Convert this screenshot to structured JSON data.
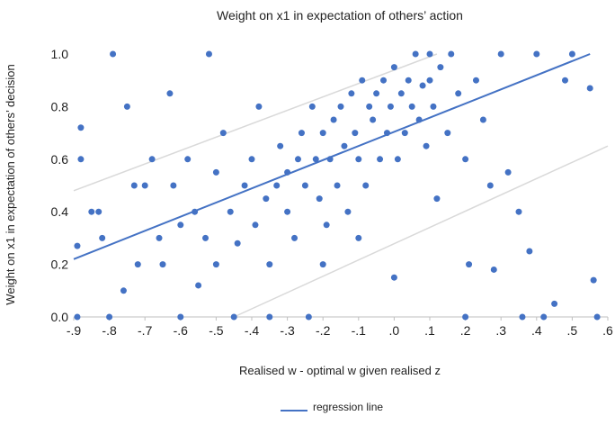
{
  "chart_data": {
    "type": "scatter",
    "title": "Weight on x1 in expectation of others’ action",
    "x_label": "Realised w - optimal w given realised z",
    "y_label": "Weight on x1 in expectation of others’ decision",
    "xlim": [
      -0.9,
      0.6
    ],
    "ylim": [
      0,
      1
    ],
    "xticks": [
      {
        "value": -0.9,
        "label": "-.9"
      },
      {
        "value": -0.8,
        "label": "-.8"
      },
      {
        "value": -0.7,
        "label": "-.7"
      },
      {
        "value": -0.6,
        "label": "-.6"
      },
      {
        "value": -0.5,
        "label": "-.5"
      },
      {
        "value": -0.4,
        "label": "-.4"
      },
      {
        "value": -0.3,
        "label": "-.3"
      },
      {
        "value": -0.2,
        "label": "-.2"
      },
      {
        "value": -0.1,
        "label": "-.1"
      },
      {
        "value": 0,
        "label": ".0"
      },
      {
        "value": 0.1,
        "label": ".1"
      },
      {
        "value": 0.2,
        "label": ".2"
      },
      {
        "value": 0.3,
        "label": ".3"
      },
      {
        "value": 0.4,
        "label": ".4"
      },
      {
        "value": 0.5,
        "label": ".5"
      },
      {
        "value": 0.6,
        "label": ".6"
      }
    ],
    "yticks": [
      {
        "value": 0,
        "label": "0.0"
      },
      {
        "value": 0.2,
        "label": "0.2"
      },
      {
        "value": 0.4,
        "label": "0.4"
      },
      {
        "value": 0.6,
        "label": "0.6"
      },
      {
        "value": 0.8,
        "label": "0.8"
      },
      {
        "value": 1,
        "label": "1.0"
      }
    ],
    "points": {
      "color": "#4472c4",
      "x": [
        -0.89,
        -0.89,
        -0.88,
        -0.88,
        -0.85,
        -0.83,
        -0.82,
        -0.8,
        -0.79,
        -0.76,
        -0.75,
        -0.73,
        -0.72,
        -0.7,
        -0.68,
        -0.66,
        -0.65,
        -0.63,
        -0.62,
        -0.6,
        -0.58,
        -0.56,
        -0.55,
        -0.53,
        -0.52,
        -0.5,
        -0.5,
        -0.48,
        -0.46,
        -0.45,
        -0.44,
        -0.42,
        -0.4,
        -0.39,
        -0.38,
        -0.36,
        -0.35,
        -0.33,
        -0.32,
        -0.3,
        -0.3,
        -0.28,
        -0.27,
        -0.26,
        -0.25,
        -0.24,
        -0.23,
        -0.22,
        -0.21,
        -0.2,
        -0.19,
        -0.18,
        -0.17,
        -0.16,
        -0.15,
        -0.14,
        -0.13,
        -0.12,
        -0.11,
        -0.1,
        -0.09,
        -0.08,
        -0.07,
        -0.06,
        -0.05,
        -0.04,
        -0.03,
        -0.02,
        -0.01,
        0.0,
        0.01,
        0.02,
        0.03,
        0.04,
        0.05,
        0.06,
        0.07,
        0.08,
        0.09,
        0.1,
        0.11,
        0.12,
        0.13,
        0.15,
        0.16,
        0.18,
        0.2,
        0.21,
        0.23,
        0.25,
        0.27,
        0.28,
        0.3,
        0.32,
        0.35,
        0.36,
        0.38,
        0.4,
        0.42,
        0.45,
        0.48,
        0.5,
        0.55,
        0.56,
        0.57,
        -0.2,
        -0.1,
        0.0,
        -0.6,
        0.1,
        -0.35,
        0.2
      ],
      "y": [
        0.0,
        0.27,
        0.72,
        0.6,
        0.4,
        0.4,
        0.3,
        0.0,
        1.0,
        0.1,
        0.8,
        0.5,
        0.2,
        0.5,
        0.6,
        0.3,
        0.2,
        0.85,
        0.5,
        0.35,
        0.6,
        0.4,
        0.12,
        0.3,
        1.0,
        0.55,
        0.2,
        0.7,
        0.4,
        0.0,
        0.28,
        0.5,
        0.6,
        0.35,
        0.8,
        0.45,
        0.2,
        0.5,
        0.65,
        0.4,
        0.55,
        0.3,
        0.6,
        0.7,
        0.5,
        0.0,
        0.8,
        0.6,
        0.45,
        0.7,
        0.35,
        0.6,
        0.75,
        0.5,
        0.8,
        0.65,
        0.4,
        0.85,
        0.7,
        0.6,
        0.9,
        0.5,
        0.8,
        0.75,
        0.85,
        0.6,
        0.9,
        0.7,
        0.8,
        0.95,
        0.6,
        0.85,
        0.7,
        0.9,
        0.8,
        1.0,
        0.75,
        0.88,
        0.65,
        0.9,
        0.8,
        0.45,
        0.95,
        0.7,
        1.0,
        0.85,
        0.6,
        0.2,
        0.9,
        0.75,
        0.5,
        0.18,
        1.0,
        0.55,
        0.4,
        0.0,
        0.25,
        1.0,
        0.0,
        0.05,
        0.9,
        1.0,
        0.87,
        0.14,
        0.0,
        0.2,
        0.3,
        0.15,
        0.0,
        1.0,
        0.0,
        0.0
      ]
    },
    "regression": {
      "name": "regression line",
      "color": "#4472c4",
      "x": [
        -0.9,
        0.55
      ],
      "y": [
        0.22,
        1.0
      ]
    },
    "bounds": {
      "color": "#d9d9d9",
      "lines": [
        {
          "x": [
            -0.9,
            0.12
          ],
          "y": [
            0.48,
            1.0
          ]
        },
        {
          "x": [
            -0.45,
            0.6
          ],
          "y": [
            0.0,
            0.65
          ]
        }
      ]
    }
  }
}
